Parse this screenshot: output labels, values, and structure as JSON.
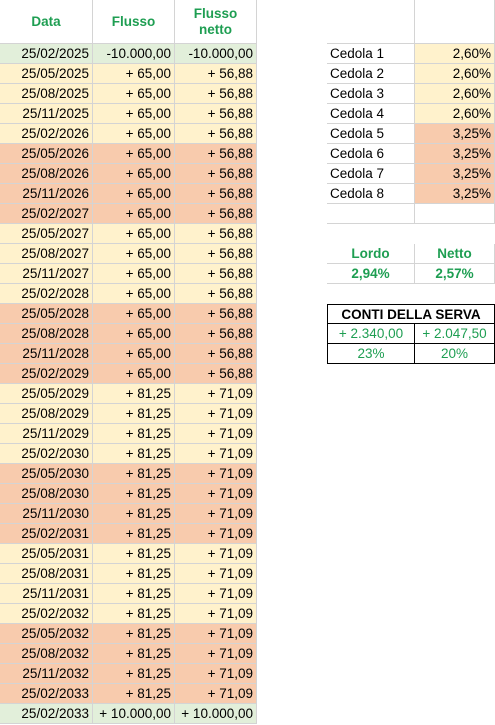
{
  "header": {
    "columns": [
      "Data",
      "Flusso",
      "Flusso\nnetto"
    ],
    "color": "#1e9e52"
  },
  "rows": [
    {
      "date": "25/02/2025",
      "flusso": "-10.000,00",
      "netto": "-10.000,00",
      "color": "#e2efda"
    },
    {
      "date": "25/05/2025",
      "flusso": "+ 65,00",
      "netto": "+ 56,88",
      "color": "#fff2cc"
    },
    {
      "date": "25/08/2025",
      "flusso": "+ 65,00",
      "netto": "+ 56,88",
      "color": "#fff2cc"
    },
    {
      "date": "25/11/2025",
      "flusso": "+ 65,00",
      "netto": "+ 56,88",
      "color": "#fff2cc"
    },
    {
      "date": "25/02/2026",
      "flusso": "+ 65,00",
      "netto": "+ 56,88",
      "color": "#fff2cc"
    },
    {
      "date": "25/05/2026",
      "flusso": "+ 65,00",
      "netto": "+ 56,88",
      "color": "#f8cbad"
    },
    {
      "date": "25/08/2026",
      "flusso": "+ 65,00",
      "netto": "+ 56,88",
      "color": "#f8cbad"
    },
    {
      "date": "25/11/2026",
      "flusso": "+ 65,00",
      "netto": "+ 56,88",
      "color": "#f8cbad"
    },
    {
      "date": "25/02/2027",
      "flusso": "+ 65,00",
      "netto": "+ 56,88",
      "color": "#f8cbad"
    },
    {
      "date": "25/05/2027",
      "flusso": "+ 65,00",
      "netto": "+ 56,88",
      "color": "#fff2cc"
    },
    {
      "date": "25/08/2027",
      "flusso": "+ 65,00",
      "netto": "+ 56,88",
      "color": "#fff2cc"
    },
    {
      "date": "25/11/2027",
      "flusso": "+ 65,00",
      "netto": "+ 56,88",
      "color": "#fff2cc"
    },
    {
      "date": "25/02/2028",
      "flusso": "+ 65,00",
      "netto": "+ 56,88",
      "color": "#fff2cc"
    },
    {
      "date": "25/05/2028",
      "flusso": "+ 65,00",
      "netto": "+ 56,88",
      "color": "#f8cbad"
    },
    {
      "date": "25/08/2028",
      "flusso": "+ 65,00",
      "netto": "+ 56,88",
      "color": "#f8cbad"
    },
    {
      "date": "25/11/2028",
      "flusso": "+ 65,00",
      "netto": "+ 56,88",
      "color": "#f8cbad"
    },
    {
      "date": "25/02/2029",
      "flusso": "+ 65,00",
      "netto": "+ 56,88",
      "color": "#f8cbad"
    },
    {
      "date": "25/05/2029",
      "flusso": "+ 81,25",
      "netto": "+ 71,09",
      "color": "#fff2cc"
    },
    {
      "date": "25/08/2029",
      "flusso": "+ 81,25",
      "netto": "+ 71,09",
      "color": "#fff2cc"
    },
    {
      "date": "25/11/2029",
      "flusso": "+ 81,25",
      "netto": "+ 71,09",
      "color": "#fff2cc"
    },
    {
      "date": "25/02/2030",
      "flusso": "+ 81,25",
      "netto": "+ 71,09",
      "color": "#fff2cc"
    },
    {
      "date": "25/05/2030",
      "flusso": "+ 81,25",
      "netto": "+ 71,09",
      "color": "#f8cbad"
    },
    {
      "date": "25/08/2030",
      "flusso": "+ 81,25",
      "netto": "+ 71,09",
      "color": "#f8cbad"
    },
    {
      "date": "25/11/2030",
      "flusso": "+ 81,25",
      "netto": "+ 71,09",
      "color": "#f8cbad"
    },
    {
      "date": "25/02/2031",
      "flusso": "+ 81,25",
      "netto": "+ 71,09",
      "color": "#f8cbad"
    },
    {
      "date": "25/05/2031",
      "flusso": "+ 81,25",
      "netto": "+ 71,09",
      "color": "#fff2cc"
    },
    {
      "date": "25/08/2031",
      "flusso": "+ 81,25",
      "netto": "+ 71,09",
      "color": "#fff2cc"
    },
    {
      "date": "25/11/2031",
      "flusso": "+ 81,25",
      "netto": "+ 71,09",
      "color": "#fff2cc"
    },
    {
      "date": "25/02/2032",
      "flusso": "+ 81,25",
      "netto": "+ 71,09",
      "color": "#fff2cc"
    },
    {
      "date": "25/05/2032",
      "flusso": "+ 81,25",
      "netto": "+ 71,09",
      "color": "#f8cbad"
    },
    {
      "date": "25/08/2032",
      "flusso": "+ 81,25",
      "netto": "+ 71,09",
      "color": "#f8cbad"
    },
    {
      "date": "25/11/2032",
      "flusso": "+ 81,25",
      "netto": "+ 71,09",
      "color": "#f8cbad"
    },
    {
      "date": "25/02/2033",
      "flusso": "+ 81,25",
      "netto": "+ 71,09",
      "color": "#f8cbad"
    },
    {
      "date": "25/02/2033",
      "flusso": "+ 10.000,00",
      "netto": "+ 10.000,00",
      "color": "#e2efda"
    }
  ],
  "cedole": [
    {
      "label": "Cedola 1",
      "rate": "2,60%",
      "color": "#fff2cc"
    },
    {
      "label": "Cedola 2",
      "rate": "2,60%",
      "color": "#fff2cc"
    },
    {
      "label": "Cedola 3",
      "rate": "2,60%",
      "color": "#fff2cc"
    },
    {
      "label": "Cedola 4",
      "rate": "2,60%",
      "color": "#fff2cc"
    },
    {
      "label": "Cedola 5",
      "rate": "3,25%",
      "color": "#f8cbad"
    },
    {
      "label": "Cedola 6",
      "rate": "3,25%",
      "color": "#f8cbad"
    },
    {
      "label": "Cedola 7",
      "rate": "3,25%",
      "color": "#f8cbad"
    },
    {
      "label": "Cedola 8",
      "rate": "3,25%",
      "color": "#f8cbad"
    }
  ],
  "rendimento": {
    "headers": [
      "Lordo",
      "Netto"
    ],
    "values": [
      "2,94%",
      "2,57%"
    ]
  },
  "conti": {
    "title": "CONTI DELLA SERVA",
    "totals": [
      "+ 2.340,00",
      "+ 2.047,50"
    ],
    "percent": [
      "23%",
      "20%"
    ]
  }
}
